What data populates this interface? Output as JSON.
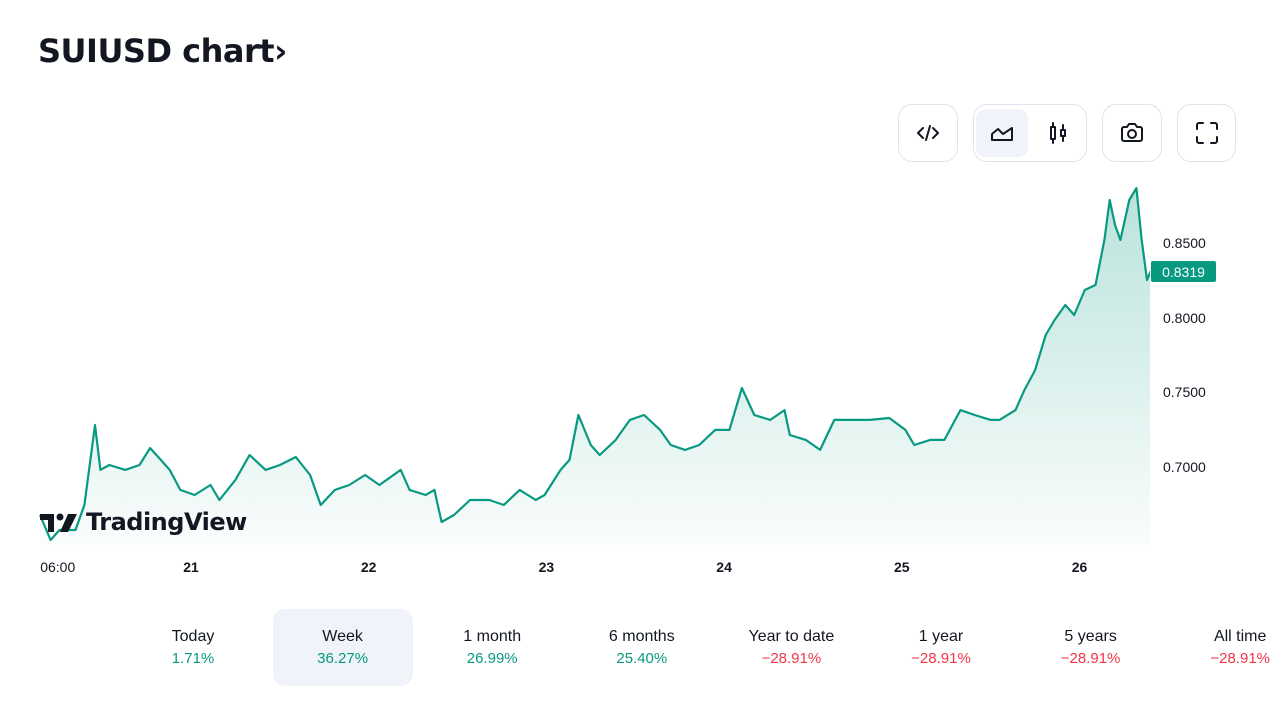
{
  "header": {
    "title": "SUIUSD chart",
    "chevron": "›"
  },
  "toolbar": {
    "icons": [
      "embed-code-icon",
      "area-chart-icon",
      "candles-icon",
      "camera-icon",
      "fullscreen-icon"
    ],
    "active": "area-chart-icon"
  },
  "watermark": "TradingView",
  "colors": {
    "line": "#089981",
    "positive": "#089981",
    "negative": "#f23645"
  },
  "periods": [
    {
      "label": "Today",
      "value": "1.71%",
      "sign": "pos"
    },
    {
      "label": "Week",
      "value": "36.27%",
      "sign": "pos",
      "active": true
    },
    {
      "label": "1 month",
      "value": "26.99%",
      "sign": "pos"
    },
    {
      "label": "6 months",
      "value": "25.40%",
      "sign": "pos"
    },
    {
      "label": "Year to date",
      "value": "−28.91%",
      "sign": "neg"
    },
    {
      "label": "1 year",
      "value": "−28.91%",
      "sign": "neg"
    },
    {
      "label": "5 years",
      "value": "−28.91%",
      "sign": "neg"
    },
    {
      "label": "All time",
      "value": "−28.91%",
      "sign": "neg"
    }
  ],
  "chart_data": {
    "type": "area",
    "title": "SUIUSD",
    "last_price": "0.8319",
    "y_ticks": [
      "0.8500",
      "0.8000",
      "0.7500",
      "0.7000"
    ],
    "x_ticks": [
      "06:00",
      "21",
      "22",
      "23",
      "24",
      "25",
      "26"
    ],
    "x_tick_values": [
      20.25,
      21,
      22,
      23,
      24,
      25,
      26
    ],
    "ylim": [
      0.645,
      0.89
    ],
    "x_unit": "day of month",
    "x": [
      20.15,
      20.21,
      20.26,
      20.35,
      20.4,
      20.46,
      20.49,
      20.54,
      20.63,
      20.71,
      20.77,
      20.83,
      20.88,
      20.94,
      21.02,
      21.11,
      21.16,
      21.25,
      21.33,
      21.42,
      21.5,
      21.59,
      21.67,
      21.73,
      21.81,
      21.89,
      21.98,
      22.06,
      22.18,
      22.23,
      22.32,
      22.37,
      22.41,
      22.48,
      22.57,
      22.68,
      22.76,
      22.85,
      22.94,
      22.99,
      23.08,
      23.13,
      23.18,
      23.25,
      23.3,
      23.39,
      23.47,
      23.55,
      23.64,
      23.7,
      23.78,
      23.86,
      23.95,
      24.03,
      24.1,
      24.17,
      24.26,
      24.34,
      24.37,
      24.46,
      24.54,
      24.62,
      24.71,
      24.82,
      24.93,
      25.02,
      25.07,
      25.16,
      25.24,
      25.33,
      25.41,
      25.5,
      25.55,
      25.64,
      25.69,
      25.75,
      25.81,
      25.86,
      25.92,
      25.97,
      26.03,
      26.09,
      26.14,
      26.17,
      26.2,
      26.23,
      26.28,
      26.32,
      26.35,
      26.38,
      26.4
    ],
    "y": [
      0.6685,
      0.6518,
      0.6585,
      0.6585,
      0.6752,
      0.7288,
      0.6987,
      0.702,
      0.6987,
      0.702,
      0.7134,
      0.7054,
      0.6987,
      0.6853,
      0.6819,
      0.6886,
      0.6786,
      0.692,
      0.7087,
      0.6987,
      0.702,
      0.7074,
      0.6953,
      0.6752,
      0.6853,
      0.6886,
      0.6953,
      0.6886,
      0.6987,
      0.6853,
      0.6819,
      0.6853,
      0.6638,
      0.6685,
      0.6786,
      0.6786,
      0.6752,
      0.6853,
      0.6786,
      0.6819,
      0.6987,
      0.7054,
      0.7355,
      0.7154,
      0.7087,
      0.7188,
      0.7322,
      0.7355,
      0.7255,
      0.7154,
      0.7121,
      0.7154,
      0.7255,
      0.7255,
      0.7536,
      0.7355,
      0.7322,
      0.7388,
      0.7221,
      0.7188,
      0.7121,
      0.7322,
      0.7322,
      0.7322,
      0.7335,
      0.7255,
      0.7154,
      0.7188,
      0.7188,
      0.7388,
      0.7355,
      0.7322,
      0.7322,
      0.7388,
      0.7522,
      0.7656,
      0.7891,
      0.7991,
      0.8092,
      0.8025,
      0.8192,
      0.8226,
      0.8527,
      0.8795,
      0.8628,
      0.8527,
      0.8795,
      0.8875,
      0.8527,
      0.8259,
      0.8319
    ]
  }
}
